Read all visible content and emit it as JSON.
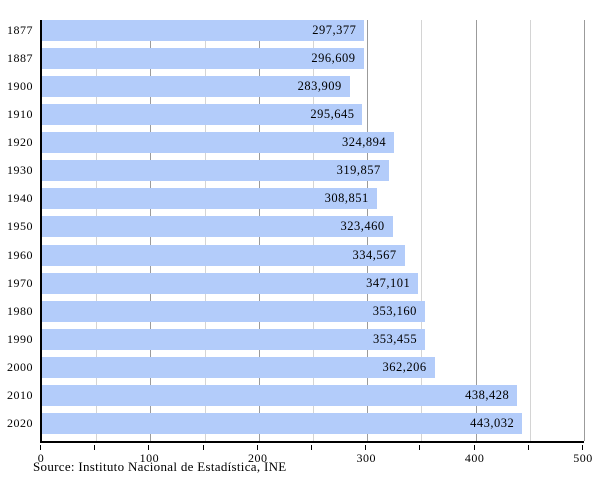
{
  "chart_data": {
    "type": "bar",
    "orientation": "horizontal",
    "title": "",
    "xlabel": "",
    "ylabel": "",
    "categories": [
      "1877",
      "1887",
      "1900",
      "1910",
      "1920",
      "1930",
      "1940",
      "1950",
      "1960",
      "1970",
      "1980",
      "1990",
      "2000",
      "2010",
      "2020"
    ],
    "values": [
      297377,
      296609,
      283909,
      295645,
      324894,
      319857,
      308851,
      323460,
      334567,
      347101,
      353160,
      353455,
      362206,
      438428,
      443032
    ],
    "value_labels": [
      "297,377",
      "296,609",
      "283,909",
      "295,645",
      "324,894",
      "319,857",
      "308,851",
      "323,460",
      "334,567",
      "347,101",
      "353,160",
      "353,455",
      "362,206",
      "438,428",
      "443,032"
    ],
    "axis_max": 500000,
    "x_tick_interval_minor": 50000,
    "x_tick_interval_major": 100000,
    "x_tick_labels": [
      "0",
      "100",
      "200",
      "300",
      "400",
      "500"
    ],
    "xlim": [
      0,
      500
    ],
    "grid": "vertical gridlines every 50 (minor light, major dark), drawn behind bars",
    "legend_position": "none",
    "colors": {
      "bar": "#b3ccfa",
      "grid_minor": "#d4d4d4",
      "grid_major": "#9b9b9b",
      "axis": "#000000",
      "text": "#000000",
      "background": "#ffffff"
    }
  },
  "footer": {
    "source": "Source: Instituto Nacional de Estadística, INE"
  }
}
